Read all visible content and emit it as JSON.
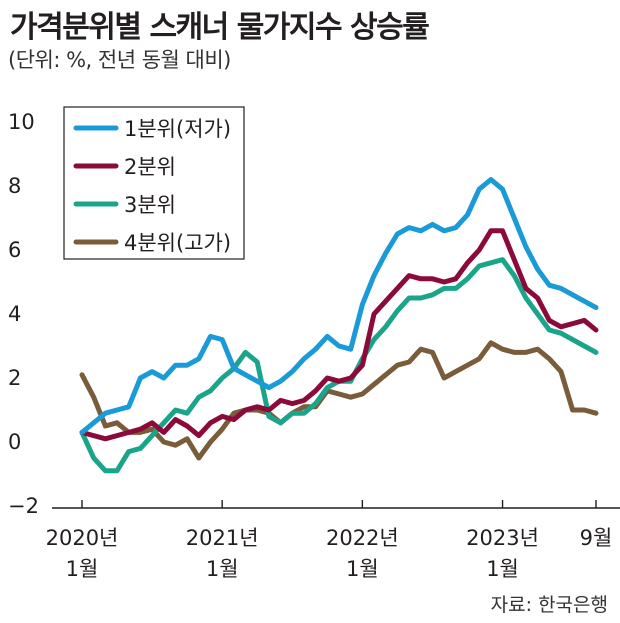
{
  "header": {
    "title": "가격분위별 스캐너 물가지수 상승률",
    "subtitle": "(단위: %, 전년 동월 대비)"
  },
  "footer": {
    "source": "자료: 한국은행"
  },
  "chart_data": {
    "type": "line",
    "title": "가격분위별 스캐너 물가지수 상승률",
    "subtitle": "(단위: %, 전년 동월 대비)",
    "ylim": [
      -2,
      10
    ],
    "yticks": [
      "10",
      "8",
      "6",
      "4",
      "2",
      "0",
      "−2"
    ],
    "ytick_values": [
      10,
      8,
      6,
      4,
      2,
      0,
      -2
    ],
    "x_start": "2020-01",
    "x_end": "2023-09",
    "xticks": [
      {
        "month": "2020-01",
        "line1": "2020년",
        "line2": "1월"
      },
      {
        "month": "2021-01",
        "line1": "2021년",
        "line2": "1월"
      },
      {
        "month": "2022-01",
        "line1": "2022년",
        "line2": "1월"
      },
      {
        "month": "2023-01",
        "line1": "2023년",
        "line2": "1월"
      },
      {
        "month": "2023-09",
        "line1": "9월",
        "line2": ""
      }
    ],
    "grid": false,
    "legend_position": "top-left",
    "series": [
      {
        "name": "1분위(저가)",
        "color": "#1a9ad6",
        "values": [
          0.3,
          0.6,
          0.9,
          1.0,
          1.1,
          2.0,
          2.2,
          2.0,
          2.4,
          2.4,
          2.6,
          3.3,
          3.2,
          2.3,
          2.1,
          1.9,
          1.7,
          1.9,
          2.2,
          2.6,
          2.9,
          3.3,
          3.0,
          2.9,
          4.3,
          5.2,
          5.9,
          6.5,
          6.7,
          6.6,
          6.8,
          6.6,
          6.7,
          7.1,
          7.9,
          8.2,
          7.9,
          7.0,
          6.1,
          5.4,
          4.9,
          4.8,
          4.6,
          4.4,
          4.2
        ]
      },
      {
        "name": "2분위",
        "color": "#8b0a3a",
        "values": [
          0.3,
          0.2,
          0.1,
          0.2,
          0.3,
          0.4,
          0.6,
          0.3,
          0.7,
          0.5,
          0.2,
          0.6,
          0.8,
          0.7,
          1.0,
          1.1,
          1.0,
          1.3,
          1.2,
          1.3,
          1.6,
          2.0,
          1.9,
          2.0,
          2.4,
          4.0,
          4.4,
          4.8,
          5.2,
          5.1,
          5.1,
          5.0,
          5.1,
          5.6,
          6.0,
          6.6,
          6.6,
          5.7,
          4.8,
          4.5,
          3.8,
          3.6,
          3.7,
          3.8,
          3.5
        ]
      },
      {
        "name": "3분위",
        "color": "#1aa58a",
        "values": [
          0.3,
          -0.5,
          -0.9,
          -0.9,
          -0.3,
          -0.2,
          0.2,
          0.6,
          1.0,
          0.9,
          1.4,
          1.6,
          2.0,
          2.3,
          2.8,
          2.5,
          0.8,
          0.6,
          0.9,
          0.9,
          1.2,
          1.7,
          1.9,
          1.9,
          2.6,
          3.2,
          3.6,
          4.1,
          4.5,
          4.5,
          4.6,
          4.8,
          4.8,
          5.1,
          5.5,
          5.6,
          5.7,
          5.2,
          4.5,
          4.0,
          3.5,
          3.4,
          3.2,
          3.0,
          2.8
        ]
      },
      {
        "name": "4분위(고가)",
        "color": "#7a5b3a",
        "values": [
          2.1,
          1.4,
          0.5,
          0.6,
          0.3,
          0.3,
          0.4,
          0.0,
          -0.1,
          0.1,
          -0.5,
          0.0,
          0.4,
          0.9,
          1.0,
          1.0,
          0.9,
          0.6,
          0.9,
          1.1,
          1.1,
          1.6,
          1.5,
          1.4,
          1.5,
          1.8,
          2.1,
          2.4,
          2.5,
          2.9,
          2.8,
          2.0,
          2.2,
          2.4,
          2.6,
          3.1,
          2.9,
          2.8,
          2.8,
          2.9,
          2.6,
          2.2,
          1.0,
          1.0,
          0.9
        ]
      }
    ]
  }
}
